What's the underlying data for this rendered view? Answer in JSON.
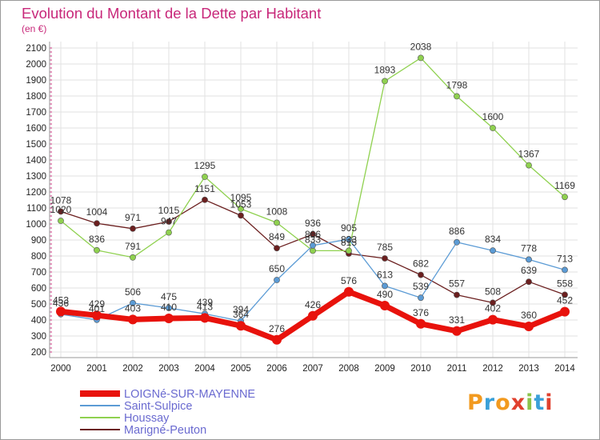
{
  "title": "Evolution du Montant de la Dette par Habitant",
  "subtitle": "(en €)",
  "logo": "Proxiti",
  "chart_data": {
    "type": "line",
    "title": "Evolution du Montant de la Dette par Habitant",
    "ylabel": "(en €)",
    "ylim": [
      200,
      2100
    ],
    "yticks": [
      200,
      300,
      400,
      500,
      600,
      700,
      800,
      900,
      1000,
      1100,
      1200,
      1300,
      1400,
      1500,
      1600,
      1700,
      1800,
      1900,
      2000,
      2100
    ],
    "x": [
      "2000",
      "2001",
      "2002",
      "2003",
      "2004",
      "2005",
      "2006",
      "2007",
      "2008",
      "2009",
      "2010",
      "2011",
      "2012",
      "2013",
      "2014"
    ],
    "grid": true,
    "legend_position": "bottom-left",
    "series": [
      {
        "name": "LOIGNé-SUR-MAYENNE",
        "color": "#e8120c",
        "values": [
          453,
          429,
          403,
          410,
          413,
          364,
          276,
          426,
          576,
          490,
          376,
          331,
          402,
          360,
          452
        ]
      },
      {
        "name": "Saint-Sulpice",
        "color": "#5b9bd5",
        "values": [
          436,
          401,
          506,
          475,
          439,
          394,
          650,
          866,
          905,
          613,
          539,
          886,
          834,
          778,
          713
        ]
      },
      {
        "name": "Houssay",
        "color": "#8fd14f",
        "values": [
          1020,
          836,
          791,
          947,
          1295,
          1095,
          1008,
          833,
          833,
          1893,
          2038,
          1798,
          1600,
          1367,
          1169
        ]
      },
      {
        "name": "Marigné-Peuton",
        "color": "#6b1f1f",
        "values": [
          1078,
          1004,
          971,
          1015,
          1151,
          1053,
          849,
          936,
          815,
          785,
          682,
          557,
          508,
          639,
          558
        ]
      }
    ]
  }
}
